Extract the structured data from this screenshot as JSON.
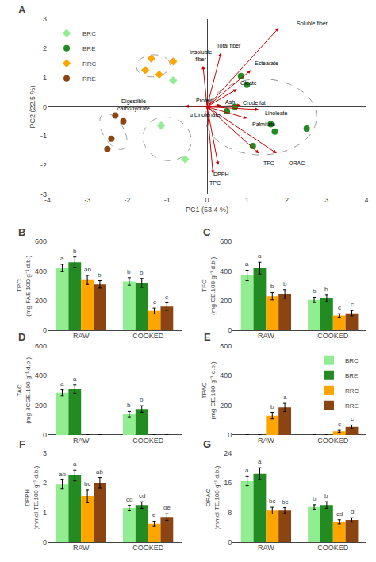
{
  "chart_data": [
    {
      "type": "scatter",
      "panel_label": "A",
      "xlabel": "PC1 (53.4 %)",
      "ylabel": "PC2 (22.5 %)",
      "xlim": [
        -4,
        4
      ],
      "ylim": [
        -3,
        3
      ],
      "xticks": [
        -4,
        -3,
        -2,
        -1,
        0,
        1,
        2,
        3,
        4
      ],
      "yticks": [
        -3,
        -2,
        -1,
        0,
        1,
        2,
        3
      ],
      "grid": false,
      "legend": "upper left",
      "series": [
        {
          "name": "BRC",
          "color": "#90EE90",
          "marker": "diamond",
          "x": [
            -0.85,
            -1.15,
            -0.55
          ],
          "y": [
            0.9,
            -0.65,
            -1.8
          ]
        },
        {
          "name": "BRE",
          "color": "#228B22",
          "marker": "circle",
          "x": [
            0.85,
            1.0,
            1.6,
            1.7,
            2.5,
            1.15,
            0.7,
            0.5
          ],
          "y": [
            1.05,
            0.75,
            -0.6,
            -0.85,
            -0.75,
            -1.35,
            0.0,
            -0.15
          ]
        },
        {
          "name": "RRC",
          "color": "#FFA500",
          "marker": "diamond",
          "x": [
            -1.4,
            -1.55,
            -1.2,
            -0.85
          ],
          "y": [
            1.65,
            1.25,
            1.1,
            1.55
          ]
        },
        {
          "name": "RRE",
          "color": "#8B4513",
          "marker": "circle",
          "x": [
            -2.3,
            -2.1,
            -2.4,
            -2.5
          ],
          "y": [
            -0.3,
            -0.5,
            -1.1,
            -1.45
          ]
        }
      ],
      "arrows": {
        "color": "#CC0000",
        "origin": [
          0,
          0
        ],
        "vectors": [
          {
            "label": "Soluble fiber",
            "x": 1.8,
            "y": 2.7,
            "label_x": 2.65,
            "label_y": 2.85
          },
          {
            "label": "Total fiber",
            "x": 0.35,
            "y": 1.85,
            "label_x": 0.55,
            "label_y": 2.1
          },
          {
            "label": "Insoluble\nfiber",
            "x": -0.1,
            "y": 1.4,
            "label_x": -0.15,
            "label_y": 1.75
          },
          {
            "label": "Estearate",
            "x": 1.1,
            "y": 1.25,
            "label_x": 1.5,
            "label_y": 1.5
          },
          {
            "label": "Oleate",
            "x": 0.75,
            "y": 0.6,
            "label_x": 1.05,
            "label_y": 0.8
          },
          {
            "label": "Protein",
            "x": 0.05,
            "y": 0.05,
            "label_x": -0.05,
            "label_y": 0.22
          },
          {
            "label": "Ash",
            "x": 0.35,
            "y": 0.05,
            "label_x": 0.58,
            "label_y": 0.15
          },
          {
            "label": "Crude fat",
            "x": 0.85,
            "y": 0.05,
            "label_x": 1.18,
            "label_y": 0.12
          },
          {
            "label": "α Linolenate",
            "x": 0.08,
            "y": -0.1,
            "label_x": -0.05,
            "label_y": -0.28
          },
          {
            "label": "Linoleate",
            "x": 1.3,
            "y": -0.1,
            "label_x": 1.75,
            "label_y": -0.22
          },
          {
            "label": "Palmitate",
            "x": 1.0,
            "y": -0.4,
            "label_x": 1.42,
            "label_y": -0.6
          },
          {
            "label": "TFC",
            "x": 1.3,
            "y": -1.6,
            "label_x": 1.55,
            "label_y": -1.92
          },
          {
            "label": "ORAC",
            "x": 1.75,
            "y": -1.6,
            "label_x": 2.25,
            "label_y": -1.92
          },
          {
            "label": "DPPH",
            "x": 0.28,
            "y": -2.0,
            "label_x": 0.35,
            "label_y": -2.32
          },
          {
            "label": "TPC",
            "x": 0.15,
            "y": -2.3,
            "label_x": 0.2,
            "label_y": -2.62
          },
          {
            "label": "Digestible\ncarbohydrate",
            "x": -0.55,
            "y": 0.02,
            "label_x": -1.85,
            "label_y": 0.05
          }
        ]
      },
      "ellipses": {
        "color": "#999999",
        "line_style": "dashed",
        "shapes": [
          {
            "cx": -1.35,
            "cy": 1.4,
            "width": 0.85,
            "height": 0.75,
            "angle": 15
          },
          {
            "cx": -1.0,
            "cy": -1.1,
            "width": 1.2,
            "height": 1.5,
            "angle": 10
          },
          {
            "cx": -2.35,
            "cy": -0.85,
            "width": 0.55,
            "height": 1.3,
            "angle": 20
          },
          {
            "cx": 1.35,
            "cy": -0.35,
            "width": 2.8,
            "height": 2.6,
            "angle": 0
          }
        ]
      }
    },
    {
      "type": "bar",
      "panel_label": "B",
      "ylabel": "TPC\n(mg FAE.100 g⁻¹ d.b.)",
      "categories": [
        "RAW",
        "COOKED"
      ],
      "ylim": [
        0,
        600
      ],
      "yticks": [
        0,
        200,
        400,
        600
      ],
      "grid": false,
      "series": [
        {
          "name": "BRC",
          "color": "#90EE90",
          "values": [
            420,
            330
          ],
          "errors": [
            25,
            25
          ],
          "letters": [
            "a",
            "b"
          ]
        },
        {
          "name": "BRE",
          "color": "#228B22",
          "values": [
            460,
            320
          ],
          "errors": [
            35,
            30
          ],
          "letters": [
            "b",
            "b"
          ]
        },
        {
          "name": "RRC",
          "color": "#FFA500",
          "values": [
            340,
            130
          ],
          "errors": [
            30,
            20
          ],
          "letters": [
            "ab",
            "c"
          ]
        },
        {
          "name": "RRE",
          "color": "#8B4513",
          "values": [
            310,
            160
          ],
          "errors": [
            25,
            25
          ],
          "letters": [
            "b",
            "c"
          ]
        }
      ]
    },
    {
      "type": "bar",
      "panel_label": "C",
      "ylabel": "TFC\n(mg CE.100 g⁻¹ d.b.)",
      "categories": [
        "RAW",
        "COOKED"
      ],
      "ylim": [
        0,
        600
      ],
      "yticks": [
        0,
        200,
        400,
        600
      ],
      "grid": false,
      "series": [
        {
          "name": "BRC",
          "color": "#90EE90",
          "values": [
            370,
            205
          ],
          "errors": [
            35,
            18
          ],
          "letters": [
            "a",
            "b"
          ]
        },
        {
          "name": "BRE",
          "color": "#228B22",
          "values": [
            420,
            215
          ],
          "errors": [
            40,
            22
          ],
          "letters": [
            "a",
            "b"
          ]
        },
        {
          "name": "RRC",
          "color": "#FFA500",
          "values": [
            230,
            100
          ],
          "errors": [
            25,
            12
          ],
          "letters": [
            "b",
            "c"
          ]
        },
        {
          "name": "RRE",
          "color": "#8B4513",
          "values": [
            245,
            115
          ],
          "errors": [
            30,
            18
          ],
          "letters": [
            "b",
            "c"
          ]
        }
      ]
    },
    {
      "type": "bar",
      "panel_label": "D",
      "ylabel": "TAC\n(mg 3CGE.100 g⁻¹ d.b.)",
      "categories": [
        "RAW",
        "COOKED"
      ],
      "ylim": [
        0,
        600
      ],
      "yticks": [
        0,
        200,
        400,
        600
      ],
      "grid": false,
      "series": [
        {
          "name": "BRC",
          "color": "#90EE90",
          "values": [
            285,
            140
          ],
          "errors": [
            22,
            18
          ],
          "letters": [
            "a",
            "b"
          ]
        },
        {
          "name": "BRE",
          "color": "#228B22",
          "values": [
            310,
            175
          ],
          "errors": [
            28,
            22
          ],
          "letters": [
            "a",
            "b"
          ]
        },
        {
          "name": "RRC",
          "color": "#FFA500",
          "values": [
            0,
            0
          ],
          "errors": [
            0,
            0
          ],
          "letters": [
            null,
            null
          ]
        },
        {
          "name": "RRE",
          "color": "#8B4513",
          "values": [
            0,
            0
          ],
          "errors": [
            0,
            0
          ],
          "letters": [
            null,
            null
          ]
        }
      ]
    },
    {
      "type": "bar",
      "panel_label": "E",
      "ylabel": "TPAC\n(mg CE.100 g⁻¹ d.b.)",
      "categories": [
        "RAW",
        "COOKED"
      ],
      "ylim": [
        0,
        600
      ],
      "yticks": [
        0,
        200,
        400,
        600
      ],
      "grid": false,
      "legend": "upper right",
      "series": [
        {
          "name": "BRC",
          "color": "#90EE90",
          "values": [
            0,
            0
          ],
          "errors": [
            0,
            0
          ],
          "letters": [
            null,
            null
          ]
        },
        {
          "name": "BRE",
          "color": "#228B22",
          "values": [
            0,
            0
          ],
          "errors": [
            0,
            0
          ],
          "letters": [
            null,
            null
          ]
        },
        {
          "name": "RRC",
          "color": "#FFA500",
          "values": [
            130,
            25
          ],
          "errors": [
            22,
            6
          ],
          "letters": [
            "b",
            "c"
          ]
        },
        {
          "name": "RRE",
          "color": "#8B4513",
          "values": [
            185,
            55
          ],
          "errors": [
            28,
            12
          ],
          "letters": [
            "a",
            "c"
          ]
        }
      ]
    },
    {
      "type": "bar",
      "panel_label": "F",
      "ylabel": "DPPH\n(mmol TE.100 g⁻¹ d.b.)",
      "categories": [
        "RAW",
        "COOKED"
      ],
      "ylim": [
        0,
        3
      ],
      "yticks": [
        0,
        1,
        2,
        3
      ],
      "grid": false,
      "series": [
        {
          "name": "BRC",
          "color": "#90EE90",
          "values": [
            1.95,
            1.15
          ],
          "errors": [
            0.15,
            0.09
          ],
          "letters": [
            "ab",
            "cd"
          ]
        },
        {
          "name": "BRE",
          "color": "#228B22",
          "values": [
            2.25,
            1.25
          ],
          "errors": [
            0.18,
            0.11
          ],
          "letters": [
            "a",
            "cd"
          ]
        },
        {
          "name": "RRC",
          "color": "#FFA500",
          "values": [
            1.55,
            0.62
          ],
          "errors": [
            0.22,
            0.09
          ],
          "letters": [
            "bc",
            "e"
          ]
        },
        {
          "name": "RRE",
          "color": "#8B4513",
          "values": [
            2.0,
            0.85
          ],
          "errors": [
            0.18,
            0.11
          ],
          "letters": [
            "ab",
            "de"
          ]
        }
      ]
    },
    {
      "type": "bar",
      "panel_label": "G",
      "ylabel": "ORAC\n(mmol TE.100 g⁻¹ d.b.)",
      "categories": [
        "RAW",
        "COOKED"
      ],
      "ylim": [
        0,
        24
      ],
      "yticks": [
        0,
        8,
        16,
        24
      ],
      "grid": false,
      "series": [
        {
          "name": "BRC",
          "color": "#90EE90",
          "values": [
            16.5,
            9.5
          ],
          "errors": [
            1.2,
            0.6
          ],
          "letters": [
            "a",
            "b"
          ]
        },
        {
          "name": "BRE",
          "color": "#228B22",
          "values": [
            18.5,
            10.0
          ],
          "errors": [
            1.6,
            0.9
          ],
          "letters": [
            "a",
            "b"
          ]
        },
        {
          "name": "RRC",
          "color": "#FFA500",
          "values": [
            8.5,
            5.5
          ],
          "errors": [
            0.9,
            0.55
          ],
          "letters": [
            "bc",
            "cd"
          ]
        },
        {
          "name": "RRE",
          "color": "#8B4513",
          "values": [
            8.5,
            6.0
          ],
          "errors": [
            0.8,
            0.6
          ],
          "letters": [
            "bc",
            "d"
          ]
        }
      ]
    }
  ]
}
